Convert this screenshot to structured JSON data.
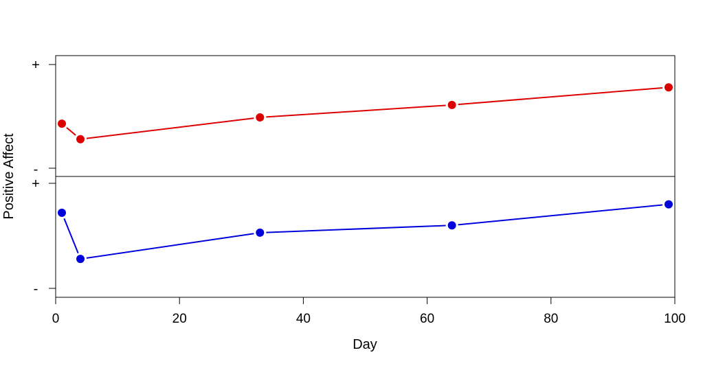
{
  "chart_data": {
    "type": "line",
    "xlabel": "Day",
    "ylabel": "Positive Affect",
    "xlim": [
      0,
      100
    ],
    "x_ticks": [
      "0",
      "20",
      "40",
      "60",
      "80",
      "100"
    ],
    "y_tick_labels": {
      "high": "+",
      "low": "-"
    },
    "panels": [
      {
        "series": [
          {
            "color": "#dd0000",
            "x": [
              1,
              4,
              33,
              64,
              99
            ],
            "y": [
              0.43,
              0.28,
              0.49,
              0.61,
              0.78
            ]
          }
        ]
      },
      {
        "series": [
          {
            "color": "#0000dd",
            "x": [
              1,
              4,
              33,
              64,
              99
            ],
            "y": [
              0.72,
              0.28,
              0.53,
              0.6,
              0.8
            ]
          }
        ]
      }
    ],
    "grid": false,
    "legend": "none"
  }
}
